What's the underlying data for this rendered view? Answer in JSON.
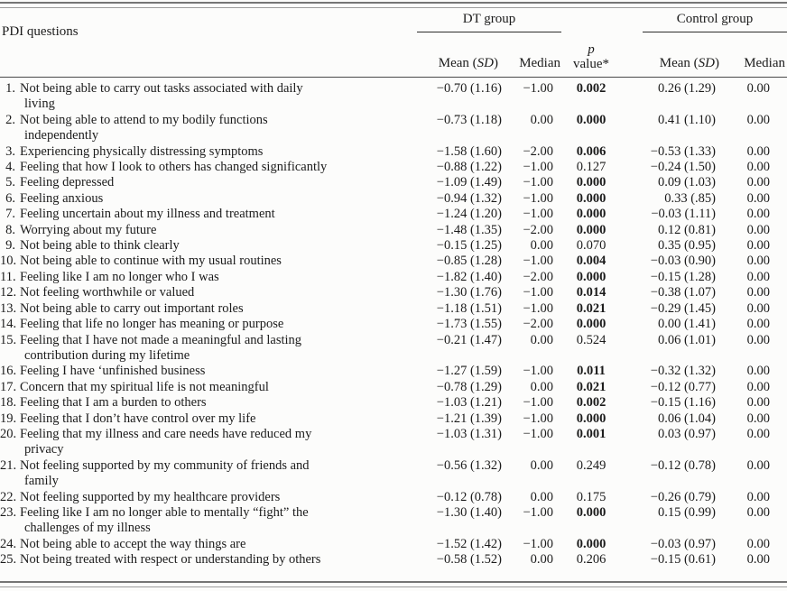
{
  "table": {
    "questions_header": "PDI questions",
    "dt_group_label": "DT group",
    "control_group_label": "Control group",
    "mean_prefix": "Mean (",
    "sd_label": "SD",
    "mean_suffix": ")",
    "median_label": "Median",
    "p_line1": "p",
    "p_line2": "value*",
    "rows": [
      {
        "num": "1.",
        "q": "Not being able to carry out tasks associated with daily\nliving",
        "dt_mean": "−0.70 (1.16)",
        "dt_med": "−1.00",
        "p": "0.002",
        "p_bold": true,
        "c_mean": "0.26 (1.29)",
        "c_med": "0.00"
      },
      {
        "num": "2.",
        "q": "Not being able to attend to my bodily functions\nindependently",
        "dt_mean": "−0.73 (1.18)",
        "dt_med": "0.00",
        "p": "0.000",
        "p_bold": true,
        "c_mean": "0.41 (1.10)",
        "c_med": "0.00"
      },
      {
        "num": "3.",
        "q": "Experiencing physically distressing symptoms",
        "dt_mean": "−1.58 (1.60)",
        "dt_med": "−2.00",
        "p": "0.006",
        "p_bold": true,
        "c_mean": "−0.53 (1.33)",
        "c_med": "0.00"
      },
      {
        "num": "4.",
        "q": "Feeling that how I look to others has changed significantly",
        "dt_mean": "−0.88 (1.22)",
        "dt_med": "−1.00",
        "p": "0.127",
        "p_bold": false,
        "c_mean": "−0.24 (1.50)",
        "c_med": "0.00"
      },
      {
        "num": "5.",
        "q": "Feeling depressed",
        "dt_mean": "−1.09 (1.49)",
        "dt_med": "−1.00",
        "p": "0.000",
        "p_bold": true,
        "c_mean": "0.09 (1.03)",
        "c_med": "0.00"
      },
      {
        "num": "6.",
        "q": "Feeling anxious",
        "dt_mean": "−0.94 (1.32)",
        "dt_med": "−1.00",
        "p": "0.000",
        "p_bold": true,
        "c_mean": "0.33 (.85)",
        "c_med": "0.00"
      },
      {
        "num": "7.",
        "q": "Feeling uncertain about my illness and treatment",
        "dt_mean": "−1.24 (1.20)",
        "dt_med": "−1.00",
        "p": "0.000",
        "p_bold": true,
        "c_mean": "−0.03 (1.11)",
        "c_med": "0.00"
      },
      {
        "num": "8.",
        "q": "Worrying about my future",
        "dt_mean": "−1.48 (1.35)",
        "dt_med": "−2.00",
        "p": "0.000",
        "p_bold": true,
        "c_mean": "0.12 (0.81)",
        "c_med": "0.00"
      },
      {
        "num": "9.",
        "q": "Not being able to think clearly",
        "dt_mean": "−0.15 (1.25)",
        "dt_med": "0.00",
        "p": "0.070",
        "p_bold": false,
        "c_mean": "0.35 (0.95)",
        "c_med": "0.00"
      },
      {
        "num": "10.",
        "q": "Not being able to continue with my usual routines",
        "dt_mean": "−0.85 (1.28)",
        "dt_med": "−1.00",
        "p": "0.004",
        "p_bold": true,
        "c_mean": "−0.03 (0.90)",
        "c_med": "0.00"
      },
      {
        "num": "11.",
        "q": "Feeling like I am no longer who I was",
        "dt_mean": "−1.82 (1.40)",
        "dt_med": "−2.00",
        "p": "0.000",
        "p_bold": true,
        "c_mean": "−0.15 (1.28)",
        "c_med": "0.00"
      },
      {
        "num": "12.",
        "q": "Not feeling worthwhile or valued",
        "dt_mean": "−1.30 (1.76)",
        "dt_med": "−1.00",
        "p": "0.014",
        "p_bold": true,
        "c_mean": "−0.38 (1.07)",
        "c_med": "0.00"
      },
      {
        "num": "13.",
        "q": "Not being able to carry out important roles",
        "dt_mean": "−1.18 (1.51)",
        "dt_med": "−1.00",
        "p": "0.021",
        "p_bold": true,
        "c_mean": "−0.29 (1.45)",
        "c_med": "0.00"
      },
      {
        "num": "14.",
        "q": "Feeling that life no longer has meaning or purpose",
        "dt_mean": "−1.73 (1.55)",
        "dt_med": "−2.00",
        "p": "0.000",
        "p_bold": true,
        "c_mean": "0.00 (1.41)",
        "c_med": "0.00"
      },
      {
        "num": "15.",
        "q": "Feeling that I have not made a meaningful and lasting\ncontribution during my lifetime",
        "dt_mean": "−0.21 (1.47)",
        "dt_med": "0.00",
        "p": "0.524",
        "p_bold": false,
        "c_mean": "0.06 (1.01)",
        "c_med": "0.00"
      },
      {
        "num": "16.",
        "q": "Feeling I have ‘unfinished business",
        "dt_mean": "−1.27 (1.59)",
        "dt_med": "−1.00",
        "p": "0.011",
        "p_bold": true,
        "c_mean": "−0.32 (1.32)",
        "c_med": "0.00"
      },
      {
        "num": "17.",
        "q": "Concern that my spiritual life is not meaningful",
        "dt_mean": "−0.78 (1.29)",
        "dt_med": "0.00",
        "p": "0.021",
        "p_bold": true,
        "c_mean": "−0.12 (0.77)",
        "c_med": "0.00"
      },
      {
        "num": "18.",
        "q": "Feeling that I am a burden to others",
        "dt_mean": "−1.03 (1.21)",
        "dt_med": "−1.00",
        "p": "0.002",
        "p_bold": true,
        "c_mean": "−0.15 (1.16)",
        "c_med": "0.00"
      },
      {
        "num": "19.",
        "q": "Feeling that I don’t have control over my life",
        "dt_mean": "−1.21 (1.39)",
        "dt_med": "−1.00",
        "p": "0.000",
        "p_bold": true,
        "c_mean": "0.06 (1.04)",
        "c_med": "0.00"
      },
      {
        "num": "20.",
        "q": "Feeling that my illness and care needs have reduced my\nprivacy",
        "dt_mean": "−1.03 (1.31)",
        "dt_med": "−1.00",
        "p": "0.001",
        "p_bold": true,
        "c_mean": "0.03 (0.97)",
        "c_med": "0.00"
      },
      {
        "num": "21.",
        "q": "Not feeling supported by my community of friends and\nfamily",
        "dt_mean": "−0.56 (1.32)",
        "dt_med": "0.00",
        "p": "0.249",
        "p_bold": false,
        "c_mean": "−0.12 (0.78)",
        "c_med": "0.00"
      },
      {
        "num": "22.",
        "q": "Not feeling supported by my healthcare providers",
        "dt_mean": "−0.12 (0.78)",
        "dt_med": "0.00",
        "p": "0.175",
        "p_bold": false,
        "c_mean": "−0.26 (0.79)",
        "c_med": "0.00"
      },
      {
        "num": "23.",
        "q": "Feeling like I am no longer able to mentally “fight” the\nchallenges of my illness",
        "dt_mean": "−1.30 (1.40)",
        "dt_med": "−1.00",
        "p": "0.000",
        "p_bold": true,
        "c_mean": "0.15 (0.99)",
        "c_med": "0.00"
      },
      {
        "num": "24.",
        "q": "Not being able to accept the way things are",
        "dt_mean": "−1.52 (1.42)",
        "dt_med": "−1.00",
        "p": "0.000",
        "p_bold": true,
        "c_mean": "−0.03 (0.97)",
        "c_med": "0.00"
      },
      {
        "num": "25.",
        "q": "Not being treated with respect or understanding by others",
        "dt_mean": "−0.58 (1.52)",
        "dt_med": "0.00",
        "p": "0.206",
        "p_bold": false,
        "c_mean": "−0.15 (0.61)",
        "c_med": "0.00"
      }
    ]
  }
}
